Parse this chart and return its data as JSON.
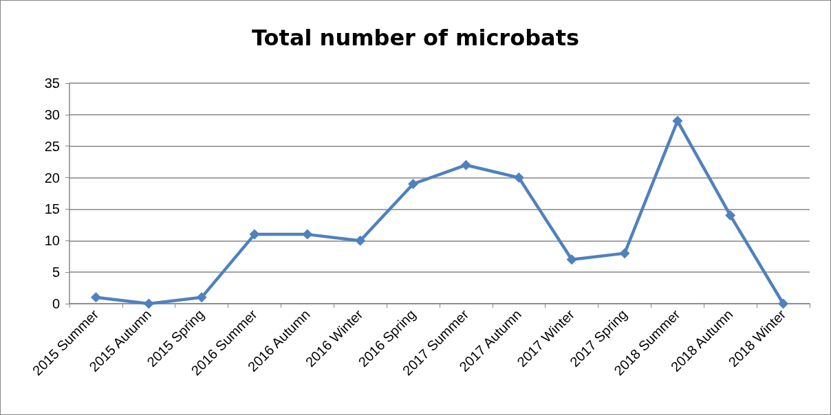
{
  "chart_data": {
    "type": "line",
    "title": "Total number of microbats",
    "categories": [
      "2015 Summer",
      "2015 Autumn",
      "2015 Spring",
      "2016 Summer",
      "2016 Autumn",
      "2016 Winter",
      "2016 Spring",
      "2017 Summer",
      "2017 Autumn",
      "2017 Winter",
      "2017 Spring",
      "2018 Summer",
      "2018 Autumn",
      "2018 Winter"
    ],
    "series": [
      {
        "color": "#4f81bd",
        "values": [
          1,
          0,
          1,
          11,
          11,
          10,
          19,
          22,
          20,
          7,
          8,
          29,
          14,
          0
        ]
      }
    ],
    "ylim": [
      0,
      35
    ],
    "yticks": [
      0,
      5,
      10,
      15,
      20,
      25,
      30,
      35
    ],
    "grid": "y",
    "marker": "diamond",
    "line_style": "solid"
  }
}
